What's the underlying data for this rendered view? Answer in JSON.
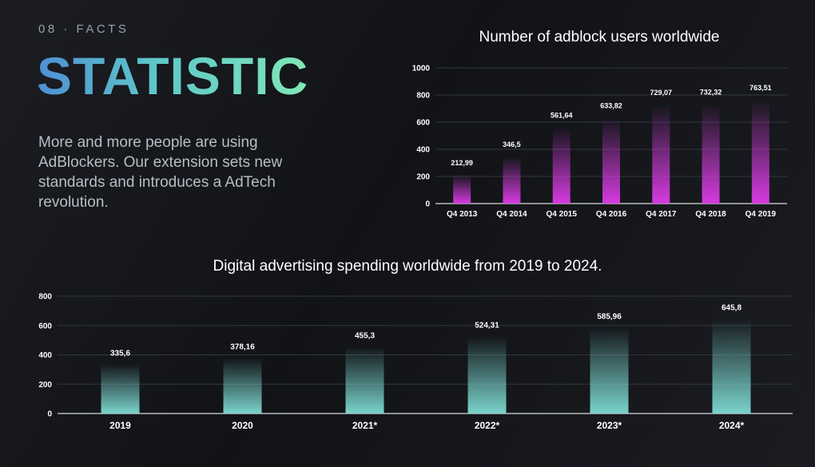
{
  "header": {
    "eyebrow": "08 · FACTS",
    "headline": "STATISTIC",
    "description": "More and more people are using AdBlockers. Our extension sets new standards and introduces a AdTech revolution."
  },
  "colors": {
    "adblock_bar": "#d63be0",
    "spending_bar": "#7ad4cc",
    "headline_gradient": [
      "#4f8fd6",
      "#5fc8c8",
      "#7fe7b8"
    ]
  },
  "chart_data": [
    {
      "type": "bar",
      "title": "Number of adblock users worldwide",
      "categories": [
        "Q4 2013",
        "Q4 2014",
        "Q4 2015",
        "Q4 2016",
        "Q4 2017",
        "Q4 2018",
        "Q4 2019"
      ],
      "values": [
        212.99,
        346.5,
        561.64,
        633.82,
        729.07,
        732.32,
        763.51
      ],
      "value_labels": [
        "212,99",
        "346,5",
        "561,64",
        "633,82",
        "729,07",
        "732,32",
        "763,51"
      ],
      "yticks": [
        "0",
        "200",
        "400",
        "600",
        "800",
        "1000"
      ],
      "ylim": [
        0,
        1000
      ],
      "xlabel": "",
      "ylabel": "",
      "grid": true
    },
    {
      "type": "bar",
      "title": "Digital advertising spending worldwide from 2019 to 2024.",
      "categories": [
        "2019",
        "2020",
        "2021*",
        "2022*",
        "2023*",
        "2024*"
      ],
      "values": [
        335.6,
        378.16,
        455.3,
        524.31,
        585.96,
        645.8
      ],
      "value_labels": [
        "335,6",
        "378,16",
        "455,3",
        "524,31",
        "585,96",
        "645,8"
      ],
      "yticks": [
        "0",
        "200",
        "400",
        "600",
        "800"
      ],
      "ylim": [
        0,
        800
      ],
      "xlabel": "",
      "ylabel": "",
      "grid": true
    }
  ]
}
